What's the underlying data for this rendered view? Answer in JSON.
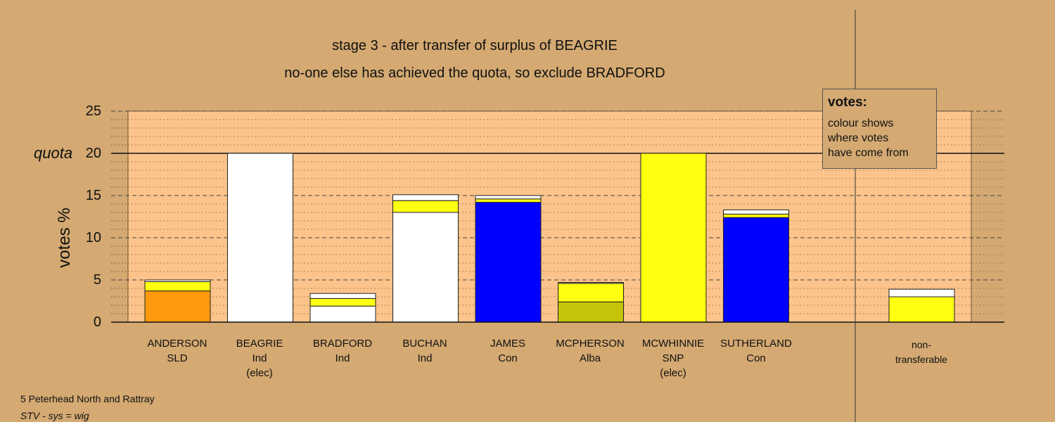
{
  "titles": {
    "line1": "stage 3 - after transfer of surplus of BEAGRIE",
    "line2": "no-one else has achieved the quota, so exclude BRADFORD"
  },
  "axis": {
    "ylabel": "votes %",
    "quota_label": "quota",
    "ticks": [
      "0",
      "5",
      "10",
      "15",
      "20",
      "25"
    ]
  },
  "legend": {
    "title": "votes:",
    "text": "colour shows\nwhere votes\nhave come from"
  },
  "footer": {
    "line1": "5 Peterhead North and Rattray",
    "line2": "STV - sys = wig"
  },
  "nontransferable": {
    "line1": "non-",
    "line2": "transferable"
  },
  "candidates": [
    {
      "name": "ANDERSON",
      "party": "SLD",
      "note": ""
    },
    {
      "name": "BEAGRIE",
      "party": "Ind",
      "note": "(elec)"
    },
    {
      "name": "BRADFORD",
      "party": "Ind",
      "note": ""
    },
    {
      "name": "BUCHAN",
      "party": "Ind",
      "note": ""
    },
    {
      "name": "JAMES",
      "party": "Con",
      "note": ""
    },
    {
      "name": "MCPHERSON",
      "party": "Alba",
      "note": ""
    },
    {
      "name": "MCWHINNIE",
      "party": "SNP",
      "note": "(elec)"
    },
    {
      "name": "SUTHERLAND",
      "party": "Con",
      "note": ""
    }
  ],
  "colors": {
    "background": "#d4a972",
    "plot": "#fcc48a",
    "SLD": "#ff9a0e",
    "Ind": "#ffffff",
    "Con": "#0000ff",
    "Alba": "#c4c40a",
    "SNP": "#ffff10"
  },
  "chart_data": {
    "type": "bar",
    "stacked": true,
    "ylim": [
      0,
      25
    ],
    "quota": 20,
    "categories": [
      "ANDERSON",
      "BEAGRIE",
      "BRADFORD",
      "BUCHAN",
      "JAMES",
      "MCPHERSON",
      "MCWHINNIE",
      "SUTHERLAND",
      "non-transferable"
    ],
    "stacks": [
      [
        {
          "source": "SLD",
          "value": 3.7
        },
        {
          "source": "SNP",
          "value": 1.1
        },
        {
          "source": "Ind",
          "value": 0.2
        }
      ],
      [
        {
          "source": "Ind",
          "value": 20.0
        }
      ],
      [
        {
          "source": "Ind",
          "value": 1.9
        },
        {
          "source": "SNP",
          "value": 0.9
        },
        {
          "source": "Ind",
          "value": 0.6
        }
      ],
      [
        {
          "source": "Ind",
          "value": 13.0
        },
        {
          "source": "SNP",
          "value": 1.4
        },
        {
          "source": "Ind",
          "value": 0.7
        }
      ],
      [
        {
          "source": "Con",
          "value": 14.2
        },
        {
          "source": "SNP",
          "value": 0.4
        },
        {
          "source": "Ind",
          "value": 0.4
        }
      ],
      [
        {
          "source": "Alba",
          "value": 2.4
        },
        {
          "source": "SNP",
          "value": 2.2
        },
        {
          "source": "Ind",
          "value": 0.1
        }
      ],
      [
        {
          "source": "SNP",
          "value": 20.0
        }
      ],
      [
        {
          "source": "Con",
          "value": 12.4
        },
        {
          "source": "SNP",
          "value": 0.4
        },
        {
          "source": "Ind",
          "value": 0.5
        }
      ],
      [
        {
          "source": "SNP",
          "value": 3.0
        },
        {
          "source": "Ind",
          "value": 0.9
        }
      ]
    ]
  }
}
